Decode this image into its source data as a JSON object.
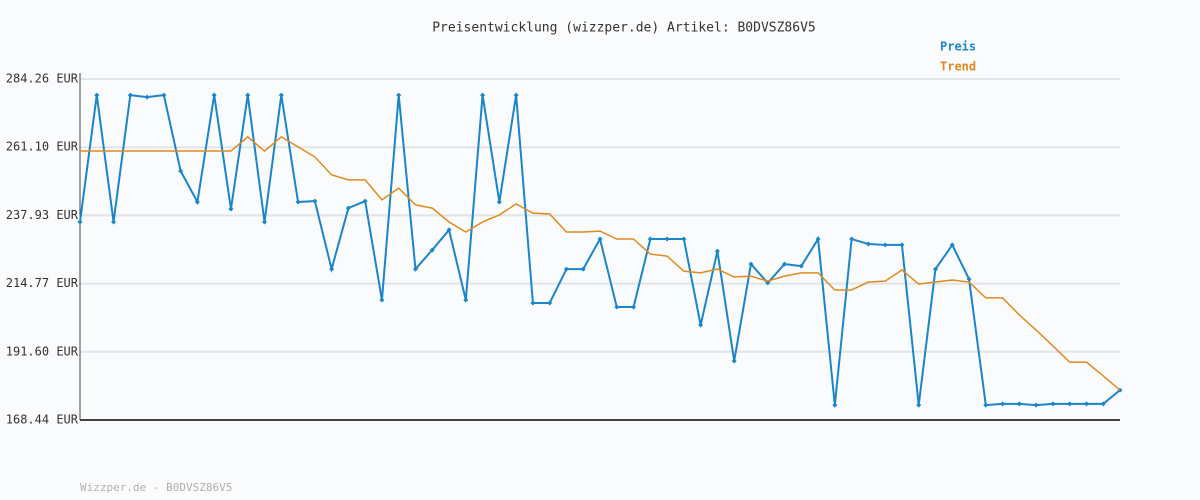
{
  "chart_data": {
    "type": "line",
    "title": "Preisentwicklung (wizzper.de) Artikel: B0DVSZ86V5",
    "footer": "Wizzper.de - B0DVSZ86V5",
    "ylim": [
      168.44,
      284.26
    ],
    "yticks": [
      {
        "value": 168.44,
        "label": "168.44 EUR"
      },
      {
        "value": 191.6,
        "label": "191.60 EUR"
      },
      {
        "value": 214.77,
        "label": "214.77 EUR"
      },
      {
        "value": 237.93,
        "label": "237.93 EUR"
      },
      {
        "value": 261.1,
        "label": "261.10 EUR"
      },
      {
        "value": 284.26,
        "label": "284.26 EUR"
      }
    ],
    "grid": true,
    "legend": "top-right",
    "series": [
      {
        "name": "Preis",
        "color": "#1a85c8",
        "markers": true,
        "values": [
          235.7,
          278.8,
          235.7,
          278.8,
          278.1,
          278.8,
          253.0,
          242.5,
          278.8,
          240.1,
          278.8,
          235.7,
          278.8,
          242.5,
          242.8,
          219.7,
          240.4,
          242.8,
          209.2,
          278.8,
          219.7,
          226.2,
          233.0,
          209.2,
          278.8,
          242.5,
          278.8,
          208.2,
          208.2,
          219.7,
          219.7,
          229.9,
          206.8,
          206.8,
          229.9,
          229.9,
          229.9,
          200.7,
          225.8,
          188.5,
          221.4,
          215.0,
          221.4,
          220.7,
          229.9,
          173.5,
          229.9,
          228.2,
          227.9,
          227.9,
          173.5,
          219.7,
          227.9,
          216.3,
          173.5,
          173.9,
          173.9,
          173.5,
          173.9,
          173.9,
          173.9,
          173.9,
          178.6
        ]
      },
      {
        "name": "Trend",
        "color": "#e08a1e",
        "markers": false,
        "values": [
          259.8,
          259.8,
          259.8,
          259.8,
          259.8,
          259.8,
          259.8,
          259.8,
          259.8,
          259.8,
          264.6,
          259.8,
          264.6,
          261.2,
          257.8,
          251.7,
          250.0,
          250.0,
          243.2,
          247.2,
          241.5,
          240.4,
          235.7,
          232.3,
          235.7,
          238.1,
          241.8,
          238.7,
          238.4,
          232.3,
          232.3,
          232.6,
          229.9,
          229.9,
          224.8,
          224.1,
          219.0,
          218.4,
          219.7,
          217.0,
          217.3,
          215.6,
          217.3,
          218.4,
          218.4,
          212.6,
          212.6,
          215.3,
          215.6,
          219.4,
          214.6,
          215.3,
          216.0,
          215.3,
          209.9,
          209.9,
          204.1,
          199.0,
          193.6,
          188.1,
          188.1,
          183.4,
          178.6
        ]
      }
    ]
  }
}
